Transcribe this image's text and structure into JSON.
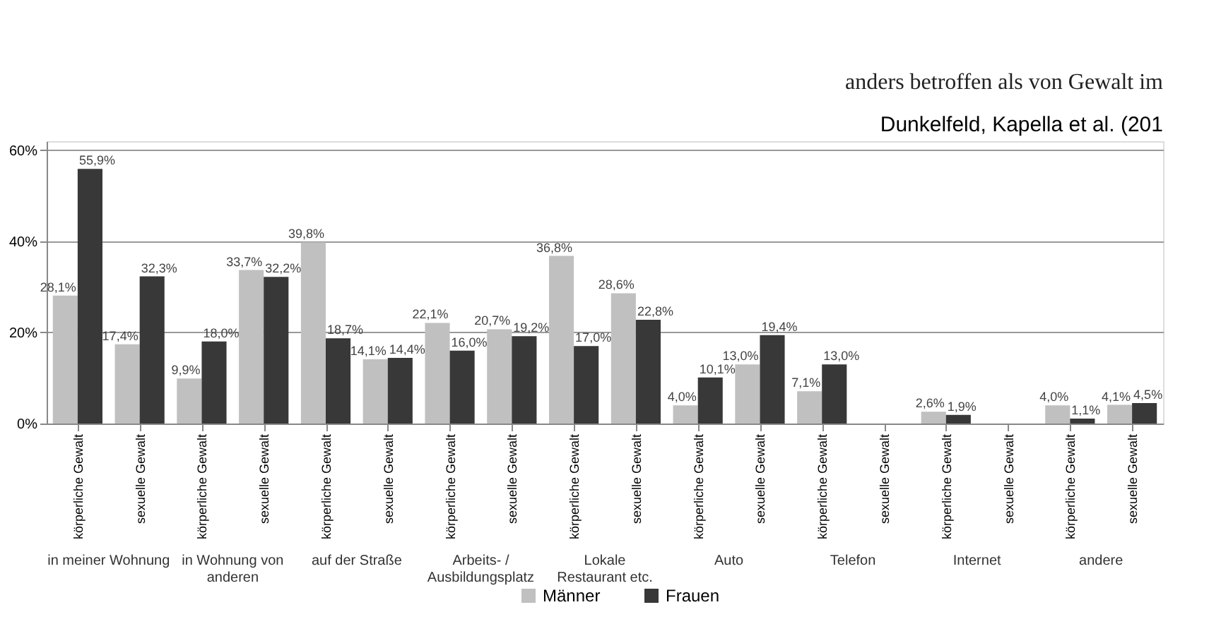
{
  "chart_data": {
    "type": "bar",
    "categories": [
      "körperliche Gewalt",
      "sexuelle Gewalt",
      "körperliche Gewalt",
      "sexuelle Gewalt",
      "körperliche Gewalt",
      "sexuelle Gewalt",
      "körperliche Gewalt",
      "sexuelle Gewalt",
      "körperliche Gewalt",
      "sexuelle Gewalt",
      "körperliche Gewalt",
      "sexuelle Gewalt",
      "körperliche Gewalt",
      "sexuelle Gewalt",
      "körperliche Gewalt",
      "sexuelle Gewalt",
      "körperliche Gewalt",
      "sexuelle Gewalt"
    ],
    "series": [
      {
        "name": "Männer",
        "color": "#c0c0c0",
        "values": [
          28.1,
          17.4,
          9.9,
          33.7,
          39.8,
          14.1,
          22.1,
          20.7,
          36.8,
          28.6,
          4.0,
          13.0,
          7.1,
          null,
          2.6,
          null,
          4.0,
          4.1
        ],
        "value_labels": [
          "28,1%",
          "17,4%",
          "9,9%",
          "33,7%",
          "39,8%",
          "14,1%",
          "22,1%",
          "20,7%",
          "36,8%",
          "28,6%",
          "4,0%",
          "13,0%",
          "7,1%",
          null,
          "2,6%",
          null,
          "4,0%",
          "4,1%"
        ]
      },
      {
        "name": "Frauen",
        "color": "#383838",
        "values": [
          55.9,
          32.3,
          18.0,
          32.2,
          18.7,
          14.4,
          16.0,
          19.2,
          17.0,
          22.8,
          10.1,
          19.4,
          13.0,
          null,
          1.9,
          null,
          1.1,
          4.5
        ],
        "value_labels": [
          "55,9%",
          "32,3%",
          "18,0%",
          "32,2%",
          "18,7%",
          "14,4%",
          "16,0%",
          "19,2%",
          "17,0%",
          "22,8%",
          "10,1%",
          "19,4%",
          "13,0%",
          null,
          "1,9%",
          null,
          "1,1%",
          "4,5%"
        ]
      }
    ],
    "ylim": [
      0,
      62
    ],
    "yticks": [
      {
        "value": 0,
        "label": "0%"
      },
      {
        "value": 20,
        "label": "20%"
      },
      {
        "value": 40,
        "label": "40%"
      },
      {
        "value": 60,
        "label": "60%"
      }
    ],
    "grid": "y",
    "legend": "bottom",
    "annotations": [
      "anders betroffen als von Gewalt im",
      "Dunkelfeld, Kapella et al. (201",
      "in meiner Wohnung",
      "in Wohnung von\nanderen",
      "auf der Straße",
      "Arbeits- /\nAusbildungsplatz",
      "Lokale\nRestaurant etc.",
      "Auto",
      "Telefon",
      "Internet",
      "andere"
    ]
  }
}
